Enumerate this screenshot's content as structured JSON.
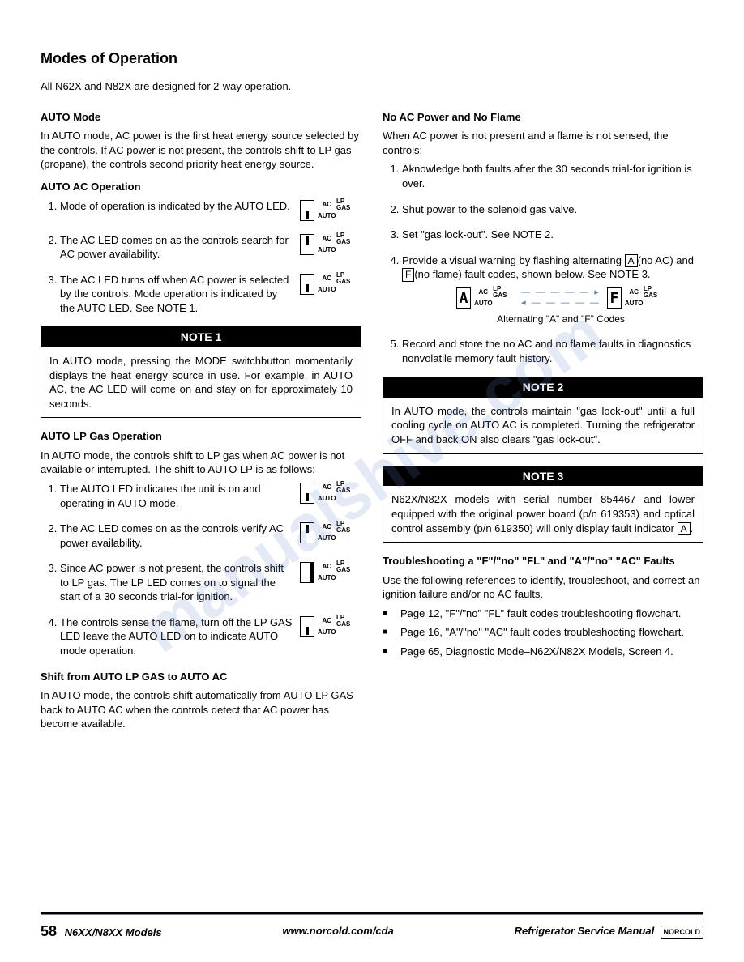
{
  "page_title": "Modes of Operation",
  "intro": "All N62X and N82X are designed for 2-way operation.",
  "led_labels": {
    "ac": "AC",
    "lpgas": "LP GAS",
    "auto": "AUTO"
  },
  "left": {
    "auto_mode_head": "AUTO Mode",
    "auto_mode_body": "In AUTO mode, AC power is the first heat energy source selected by the controls. If AC power is not present, the controls shift to LP gas (propane), the controls second priority heat energy source.",
    "auto_ac_head": "AUTO AC Operation",
    "auto_ac_items": [
      "Mode of operation is indicated by the AUTO LED.",
      "The AC LED comes on as the controls search for AC power availability.",
      "The AC LED turns off when AC power is selected by the controls. Mode operation is indicated by the AUTO LED. See NOTE 1."
    ],
    "note1_title": "NOTE 1",
    "note1_body": "In AUTO mode, pressing the MODE switchbutton momentarily displays the heat energy source in use. For example, in AUTO AC, the AC LED will come on and stay on for approximately 10 seconds.",
    "auto_lp_head": "AUTO LP Gas Operation",
    "auto_lp_intro": "In AUTO mode, the controls shift to LP gas when AC power is not available or interrupted. The shift to AUTO LP is as follows:",
    "auto_lp_items": [
      "The AUTO LED indicates the unit is on and operating in AUTO mode.",
      "The AC LED comes on as the controls verify AC power availability.",
      "Since AC power is not present, the controls shift to LP gas. The LP LED comes on to signal the start of a 30 seconds trial-for ignition.",
      "The controls sense the flame, turn off the LP GAS LED leave the AUTO LED on to indicate AUTO mode operation."
    ],
    "shift_head": "Shift from AUTO LP GAS to AUTO AC",
    "shift_body": "In AUTO mode, the controls shift automatically from AUTO LP GAS back to AUTO AC when the controls detect that AC power has become available."
  },
  "right": {
    "noac_head": "No AC Power and No Flame",
    "noac_intro": "When AC power is not present and a flame is not sensed, the controls:",
    "noac_items": [
      "Aknowledge both faults after the 30 seconds trial-for ignition is over.",
      "Shut power to the solenoid gas valve.",
      "Set \"gas lock-out\". See NOTE 2."
    ],
    "noac_item4_pre": "Provide a visual warning by flashing alternating ",
    "noac_item4_a": "A",
    "noac_item4_mid1": "(no AC) and ",
    "noac_item4_f": "F",
    "noac_item4_post": "(no flame) fault codes, shown below. See NOTE 3.",
    "alt_caption": "Alternating \"A\" and \"F\" Codes",
    "noac_item5": "Record and store the no AC and no flame faults in diagnostics nonvolatile memory fault history.",
    "note2_title": "NOTE 2",
    "note2_body": "In AUTO mode, the controls maintain \"gas lock-out\" until a full cooling cycle on AUTO AC is completed. Turning the refrigerator OFF and back ON also clears \"gas lock-out\".",
    "note3_title": "NOTE 3",
    "note3_body_pre": "N62X/N82X models with serial number 854467 and lower equipped with the original power board (p/n 619353) and optical control assembly (p/n 619350) will only display fault indicator ",
    "note3_body_char": "A",
    "note3_body_post": ".",
    "trouble_head": "Troubleshooting a \"F\"/\"no\" \"FL\" and \"A\"/\"no\" \"AC\" Faults",
    "trouble_intro": "Use the following references to identify, troubleshoot, and correct an ignition failure and/or no AC faults.",
    "trouble_bullets": [
      "Page 12, \"F\"/\"no\" \"FL\" fault codes troubleshooting flowchart.",
      "Page 16, \"A\"/\"no\" \"AC\" fault codes troubleshooting flowchart.",
      "Page 65, Diagnostic Mode–N62X/N82X Models, Screen 4."
    ]
  },
  "footer": {
    "page_num": "58",
    "models": "N6XX/N8XX Models",
    "url": "www.norcold.com/cda",
    "manual": "Refrigerator Service Manual",
    "logo": "NORCOLD"
  },
  "watermark": "manualshive.com"
}
